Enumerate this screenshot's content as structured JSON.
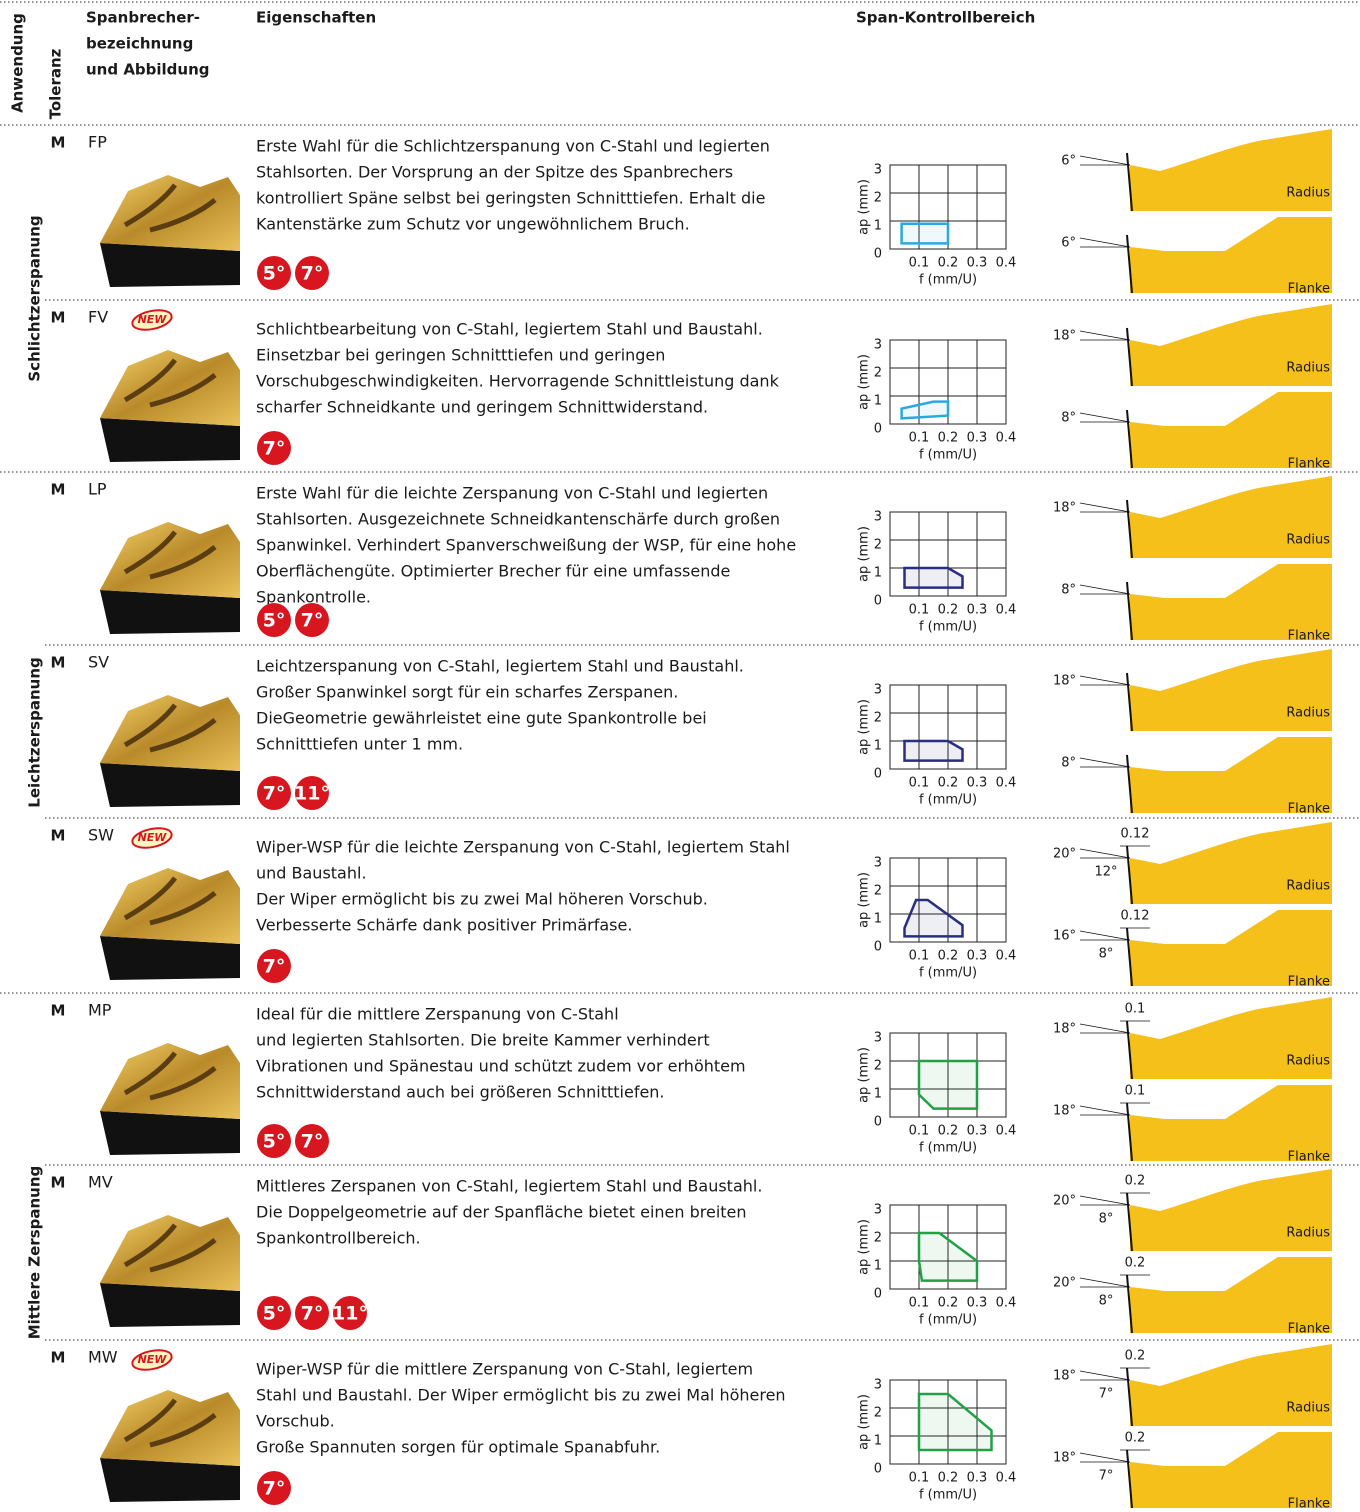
{
  "header": {
    "anwendung": "Anwendung",
    "toleranz": "Toleranz",
    "spanbrecher": [
      "Spanbrecher-",
      "bezeichnung",
      "und Abbildung"
    ],
    "eigenschaften": "Eigenschaften",
    "kontrollbereich": "Span-Kontrollbereich"
  },
  "chart_axes": {
    "xlim": [
      0,
      0.4
    ],
    "ylim": [
      0,
      3
    ],
    "xticks": [
      0.1,
      0.2,
      0.3,
      0.4
    ],
    "yticks": [
      0,
      1,
      2,
      3
    ],
    "xlabel": "f (mm/U)",
    "ylabel": "ap (mm)"
  },
  "groups": [
    {
      "label": "Schlichtzerspanung",
      "rows": [
        {
          "tolerance": "M",
          "name": "FP",
          "description": [
            "Erste Wahl für die Schlichtzerspanung von C-Stahl und legierten",
            "Stahlsorten. Der Vorsprung an der Spitze des Spanbrechers",
            "kontrolliert Späne selbst bei geringsten Schnitttiefen. Erhalt die",
            "Kantenstärke zum Schutz vor ungewöhnlichem Bruch."
          ],
          "angles": [
            "5°",
            "7°"
          ],
          "region": {
            "color": "#29a9e0",
            "f": [
              0.04,
              0.2,
              0.2,
              0.04
            ],
            "ap": [
              0.2,
              0.2,
              0.9,
              0.9
            ]
          },
          "profiles": {
            "top": {
              "angle": "6°",
              "label": "Radius"
            },
            "bottom": {
              "angle": "6°",
              "label": "Flanke"
            }
          }
        },
        {
          "tolerance": "M",
          "name": "FV",
          "new": "NEW",
          "description": [
            "Schlichtbearbeitung von C-Stahl, legiertem Stahl und Baustahl.",
            "Einsetzbar bei geringen Schnitttiefen und geringen",
            "Vorschubgeschwindigkeiten. Hervorragende Schnittleistung dank",
            "scharfer Schneidkante und geringem Schnittwiderstand."
          ],
          "angles": [
            "7°"
          ],
          "region": {
            "color": "#29a9e0",
            "f": [
              0.04,
              0.2,
              0.2,
              0.15,
              0.04
            ],
            "ap": [
              0.2,
              0.3,
              0.8,
              0.8,
              0.55
            ]
          },
          "profiles": {
            "top": {
              "angle": "18°",
              "label": "Radius"
            },
            "bottom": {
              "angle": "8°",
              "label": "Flanke"
            }
          }
        }
      ]
    },
    {
      "label": "Leichtzerspanung",
      "rows": [
        {
          "tolerance": "M",
          "name": "LP",
          "description": [
            "Erste Wahl für die leichte Zerspanung von C-Stahl und legierten",
            "Stahlsorten. Ausgezeichnete Schneidkantenschärfe durch großen",
            "Spanwinkel. Verhindert Spanverschweißung der WSP, für eine hohe",
            "Oberflächengüte. Optimierter Brecher für eine umfassende",
            "Spankontrolle."
          ],
          "angles": [
            "5°",
            "7°"
          ],
          "region": {
            "color": "#2b2e7f",
            "f": [
              0.05,
              0.25,
              0.25,
              0.2,
              0.05
            ],
            "ap": [
              0.3,
              0.3,
              0.7,
              1,
              1
            ]
          },
          "profiles": {
            "top": {
              "angle": "18°",
              "label": "Radius"
            },
            "bottom": {
              "angle": "8°",
              "label": "Flanke"
            }
          }
        },
        {
          "tolerance": "M",
          "name": "SV",
          "description": [
            "Leichtzerspanung von C-Stahl, legiertem Stahl und Baustahl.",
            "Großer Spanwinkel sorgt für ein scharfes Zerspanen.",
            "DieGeometrie gewährleistet eine gute Spankontrolle bei",
            "Schnitttiefen unter 1 mm."
          ],
          "angles": [
            "7°",
            "11°"
          ],
          "region": {
            "color": "#2b2e7f",
            "f": [
              0.05,
              0.25,
              0.25,
              0.2,
              0.05
            ],
            "ap": [
              0.3,
              0.3,
              0.7,
              1,
              1
            ]
          },
          "profiles": {
            "top": {
              "angle": "18°",
              "label": "Radius"
            },
            "bottom": {
              "angle": "8°",
              "label": "Flanke"
            }
          }
        },
        {
          "tolerance": "M",
          "name": "SW",
          "new": "NEW",
          "description": [
            "Wiper-WSP für die leichte Zerspanung von C-Stahl, legiertem Stahl",
            "und Baustahl.",
            "Der Wiper ermöglicht bis zu zwei Mal höheren Vorschub.",
            "Verbesserte Schärfe dank positiver Primärfase."
          ],
          "angles": [
            "7°"
          ],
          "region": {
            "color": "#2b2e7f",
            "f": [
              0.05,
              0.09,
              0.13,
              0.25,
              0.25,
              0.05
            ],
            "ap": [
              0.5,
              1.5,
              1.5,
              0.6,
              0.2,
              0.2
            ]
          },
          "profiles": {
            "top": {
              "angle": "20°",
              "sub_angle": "12°",
              "chamfer": "0.12",
              "label": "Radius"
            },
            "bottom": {
              "angle": "16°",
              "sub_angle": "8°",
              "chamfer": "0.12",
              "label": "Flanke"
            }
          }
        }
      ]
    },
    {
      "label": "Mittlere Zerspanung",
      "rows": [
        {
          "tolerance": "M",
          "name": "MP",
          "description": [
            "Ideal für die mittlere Zerspanung von C-Stahl",
            "und legierten Stahlsorten. Die breite Kammer verhindert",
            "Vibrationen und Spänestau und schützt zudem vor erhöhtem",
            "Schnittwiderstand auch bei größeren Schnitttiefen."
          ],
          "angles": [
            "5°",
            "7°"
          ],
          "region": {
            "color": "#22a045",
            "f": [
              0.1,
              0.3,
              0.3,
              0.15,
              0.1
            ],
            "ap": [
              2,
              2,
              0.3,
              0.3,
              0.8
            ]
          },
          "profiles": {
            "top": {
              "angle": "18°",
              "chamfer": "0.1",
              "label": "Radius"
            },
            "bottom": {
              "angle": "18°",
              "chamfer": "0.1",
              "label": "Flanke"
            }
          }
        },
        {
          "tolerance": "M",
          "name": "MV",
          "description": [
            "Mittleres Zerspanen von C-Stahl, legiertem Stahl und Baustahl.",
            "Die Doppelgeometrie auf der Spanfläche bietet einen breiten",
            "Spankontrollbereich."
          ],
          "angles": [
            "5°",
            "7°",
            "11°"
          ],
          "region": {
            "color": "#22a045",
            "f": [
              0.1,
              0.17,
              0.3,
              0.3,
              0.11,
              0.1
            ],
            "ap": [
              2,
              2,
              1,
              0.3,
              0.3,
              1
            ]
          },
          "profiles": {
            "top": {
              "angle": "20°",
              "sub_angle": "8°",
              "chamfer": "0.2",
              "label": "Radius"
            },
            "bottom": {
              "angle": "20°",
              "sub_angle": "8°",
              "chamfer": "0.2",
              "label": "Flanke"
            }
          }
        },
        {
          "tolerance": "M",
          "name": "MW",
          "new": "NEW",
          "description": [
            "Wiper-WSP für die mittlere Zerspanung von C-Stahl, legiertem",
            "Stahl und Baustahl. Der Wiper ermöglicht bis zu zwei Mal höheren",
            "Vorschub.",
            "Große Spannuten sorgen für optimale Spanabfuhr."
          ],
          "angles": [
            "7°"
          ],
          "region": {
            "color": "#22a045",
            "f": [
              0.1,
              0.2,
              0.35,
              0.35,
              0.1
            ],
            "ap": [
              2.5,
              2.5,
              1.2,
              0.5,
              0.5
            ]
          },
          "profiles": {
            "top": {
              "angle": "18°",
              "sub_angle": "7°",
              "chamfer": "0.2",
              "label": "Radius"
            },
            "bottom": {
              "angle": "18°",
              "sub_angle": "7°",
              "chamfer": "0.2",
              "label": "Flanke"
            }
          }
        }
      ]
    }
  ]
}
